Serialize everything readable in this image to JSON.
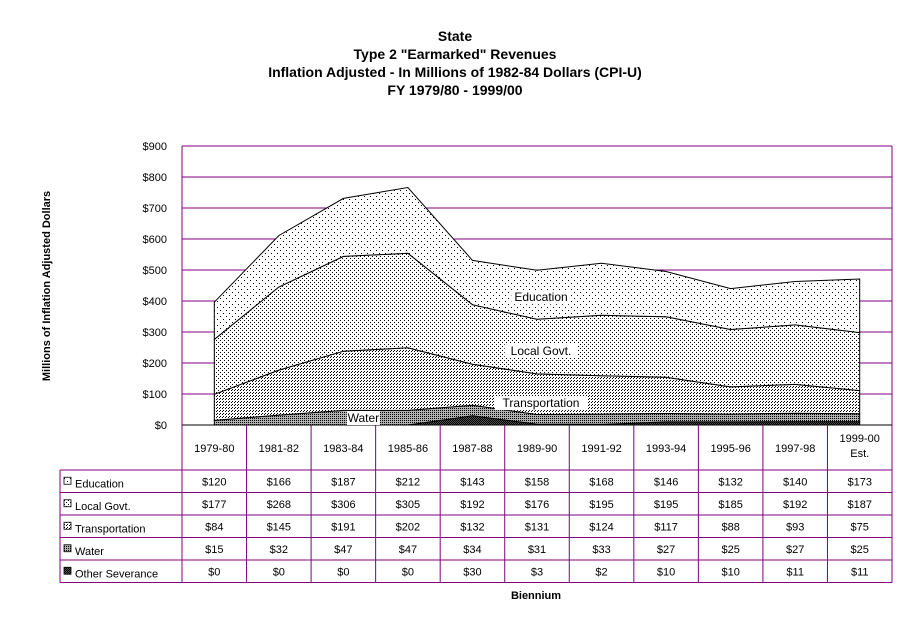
{
  "chart_data": {
    "type": "area",
    "stacked": true,
    "title_lines": [
      "State",
      "Type 2 \"Earmarked\" Revenues",
      "Inflation Adjusted - In Millions of 1982-84  Dollars (CPI-U)",
      "FY 1979/80 - 1999/00"
    ],
    "xlabel": "Biennium",
    "ylabel": "Millions of Inflation Adjusted Dollars",
    "ylim": [
      0,
      900
    ],
    "yticks": [
      0,
      100,
      200,
      300,
      400,
      500,
      600,
      700,
      800,
      900
    ],
    "ytick_labels": [
      "$0",
      "$100",
      "$200",
      "$300",
      "$400",
      "$500",
      "$600",
      "$700",
      "$800",
      "$900"
    ],
    "grid": true,
    "categories": [
      [
        "1979-80"
      ],
      [
        "1981-82"
      ],
      [
        "1983-84"
      ],
      [
        "1985-86"
      ],
      [
        "1987-88"
      ],
      [
        "1989-90"
      ],
      [
        "1991-92"
      ],
      [
        "1993-94"
      ],
      [
        "1995-96"
      ],
      [
        "1997-98"
      ],
      [
        "1999-00",
        "Est."
      ]
    ],
    "series": [
      {
        "name": "Education",
        "values": [
          120,
          166,
          187,
          212,
          143,
          158,
          168,
          146,
          132,
          140,
          173
        ],
        "labels": [
          "$120",
          "$166",
          "$187",
          "$212",
          "$143",
          "$158",
          "$168",
          "$146",
          "$132",
          "$140",
          "$173"
        ],
        "fill": "dots-sparse"
      },
      {
        "name": "Local Govt.",
        "values": [
          177,
          268,
          306,
          305,
          192,
          176,
          195,
          195,
          185,
          192,
          187
        ],
        "labels": [
          "$177",
          "$268",
          "$306",
          "$305",
          "$192",
          "$176",
          "$195",
          "$195",
          "$185",
          "$192",
          "$187"
        ],
        "fill": "dots-light"
      },
      {
        "name": "Transportation",
        "values": [
          84,
          145,
          191,
          202,
          132,
          131,
          124,
          117,
          88,
          93,
          75
        ],
        "labels": [
          "$84",
          "$145",
          "$191",
          "$202",
          "$132",
          "$131",
          "$124",
          "$117",
          "$88",
          "$93",
          "$75"
        ],
        "fill": "dots-medium"
      },
      {
        "name": "Water",
        "values": [
          15,
          32,
          47,
          47,
          34,
          31,
          33,
          27,
          25,
          27,
          25
        ],
        "labels": [
          "$15",
          "$32",
          "$47",
          "$47",
          "$34",
          "$31",
          "$33",
          "$27",
          "$25",
          "$27",
          "$25"
        ],
        "fill": "dots-dense"
      },
      {
        "name": "Other Severance",
        "values": [
          0,
          0,
          0,
          0,
          30,
          3,
          2,
          10,
          10,
          11,
          11
        ],
        "labels": [
          "$0",
          "$0",
          "$0",
          "$0",
          "$30",
          "$3",
          "$2",
          "$10",
          "$10",
          "$11",
          "$11"
        ],
        "fill": "dots-darkest"
      }
    ],
    "area_labels": [
      "Education",
      "Local Govt.",
      "Transportation",
      "Water"
    ],
    "colors": {
      "grid": "#800080",
      "text": "#000000",
      "background": "#ffffff"
    }
  }
}
